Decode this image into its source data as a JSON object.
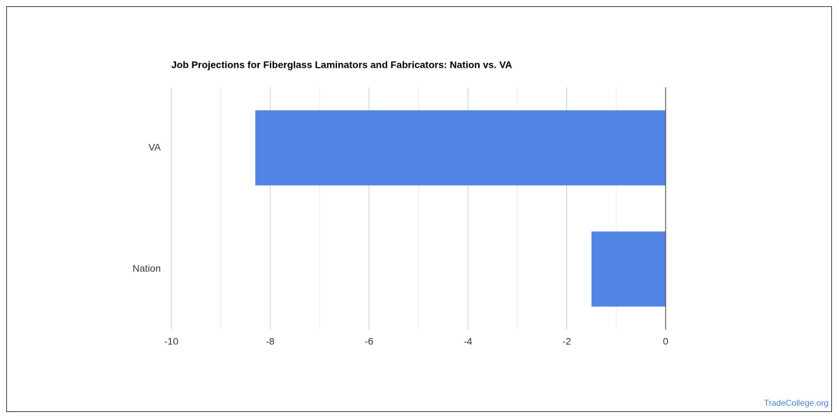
{
  "chart_data": {
    "type": "hbar",
    "title": "Job Projections for Fiberglass Laminators and Fabricators: Nation vs. VA",
    "categories": [
      "VA",
      "Nation"
    ],
    "values": [
      -8.3,
      -1.5
    ],
    "color": "#5386e4",
    "xlim": [
      -10,
      0
    ],
    "xticks": [
      -10,
      -8,
      -6,
      -4,
      -2,
      0
    ],
    "xminorticks": [
      -9,
      -7,
      -5,
      -3,
      -1
    ],
    "grid": true,
    "watermark": "TradeCollege.org"
  }
}
